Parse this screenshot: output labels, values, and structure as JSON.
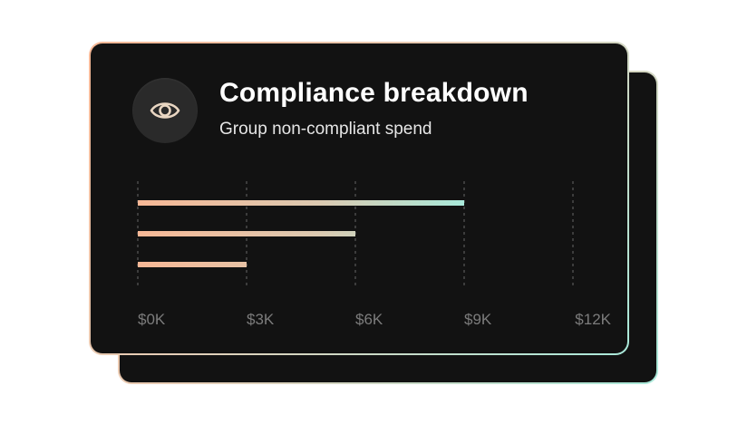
{
  "header": {
    "title": "Compliance breakdown",
    "subtitle": "Group non-compliant spend",
    "icon": "eye-icon"
  },
  "colors": {
    "card_background": "#121212",
    "bar_start": "#f7b896",
    "bar_end": "#a9e9da",
    "tick_label": "#7c7c7c",
    "grid": "#4a4a4a"
  },
  "chart_data": {
    "type": "bar",
    "orientation": "horizontal",
    "title": "Compliance breakdown",
    "subtitle": "Group non-compliant spend",
    "categories": [
      "",
      "",
      ""
    ],
    "values": [
      9000,
      6000,
      3000
    ],
    "xlim": [
      0,
      12000
    ],
    "xticks": [
      0,
      3000,
      6000,
      9000,
      12000
    ],
    "xtick_labels": [
      "$0K",
      "$3K",
      "$6K",
      "$9K",
      "$12K"
    ],
    "grid": true,
    "legend": "none"
  }
}
